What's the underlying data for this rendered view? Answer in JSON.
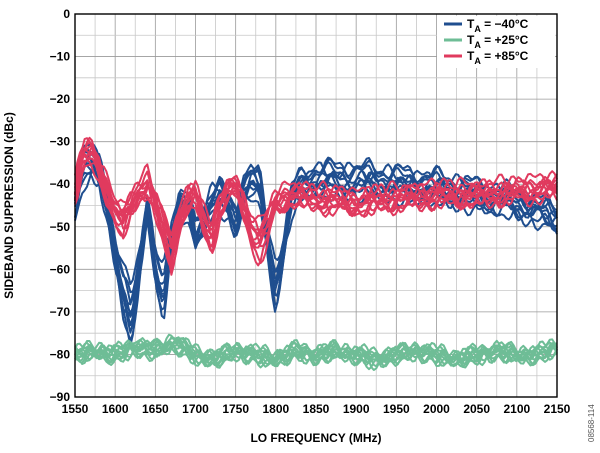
{
  "chart_data": {
    "type": "line",
    "xlabel": "LO FREQUENCY (MHz)",
    "ylabel": "SIDEBAND SUPPRESSION (dBc)",
    "xlim": [
      1550,
      2150
    ],
    "ylim": [
      -90,
      0
    ],
    "x_ticks": [
      "1550",
      "1600",
      "1650",
      "1700",
      "1750",
      "1800",
      "1850",
      "1900",
      "1950",
      "2000",
      "2050",
      "2100",
      "2150"
    ],
    "y_ticks": [
      "0",
      "−10",
      "−20",
      "−30",
      "−40",
      "−50",
      "−60",
      "−70",
      "−80",
      "−90"
    ],
    "grid": true,
    "legend_position": "top-right",
    "series": [
      {
        "name": "−40°C",
        "color": "#1f4e8f",
        "x": [
          1550,
          1560,
          1570,
          1580,
          1590,
          1600,
          1610,
          1620,
          1630,
          1640,
          1650,
          1660,
          1670,
          1680,
          1690,
          1700,
          1710,
          1720,
          1730,
          1740,
          1750,
          1760,
          1770,
          1780,
          1790,
          1800,
          1810,
          1820,
          1830,
          1850,
          1900,
          1950,
          2000,
          2050,
          2100,
          2150
        ],
        "y": [
          -44,
          -36,
          -33,
          -35,
          -45,
          -58,
          -68,
          -73,
          -60,
          -45,
          -62,
          -68,
          -52,
          -44,
          -45,
          -53,
          -48,
          -43,
          -42,
          -45,
          -50,
          -40,
          -38,
          -40,
          -55,
          -66,
          -55,
          -43,
          -40,
          -38,
          -38,
          -39,
          -40,
          -42,
          -44,
          -48
        ]
      },
      {
        "name": "+25°C",
        "color": "#6ebd96",
        "x": [
          1550,
          1575,
          1600,
          1625,
          1650,
          1675,
          1700,
          1725,
          1750,
          1775,
          1800,
          1825,
          1850,
          1875,
          1900,
          1925,
          1950,
          1975,
          2000,
          2025,
          2050,
          2075,
          2100,
          2125,
          2150
        ],
        "y": [
          -80,
          -79,
          -80,
          -78,
          -79,
          -77,
          -80,
          -81,
          -79,
          -80,
          -81,
          -79,
          -80,
          -79,
          -80,
          -81,
          -80,
          -79,
          -80,
          -81,
          -80,
          -79,
          -80,
          -80,
          -78
        ]
      },
      {
        "name": "+85°C",
        "color": "#e03a5e",
        "x": [
          1550,
          1560,
          1570,
          1580,
          1590,
          1600,
          1610,
          1620,
          1630,
          1640,
          1650,
          1660,
          1670,
          1680,
          1690,
          1700,
          1710,
          1720,
          1730,
          1740,
          1750,
          1760,
          1770,
          1780,
          1790,
          1800,
          1810,
          1820,
          1850,
          1900,
          1950,
          2000,
          2050,
          2100,
          2150
        ],
        "y": [
          -42,
          -33,
          -32,
          -36,
          -42,
          -47,
          -50,
          -46,
          -42,
          -40,
          -45,
          -52,
          -58,
          -49,
          -44,
          -43,
          -50,
          -54,
          -46,
          -42,
          -41,
          -46,
          -52,
          -55,
          -51,
          -45,
          -44,
          -43,
          -44,
          -45,
          -44,
          -43,
          -43,
          -42,
          -41
        ]
      }
    ]
  },
  "figure_code": "08568-114"
}
